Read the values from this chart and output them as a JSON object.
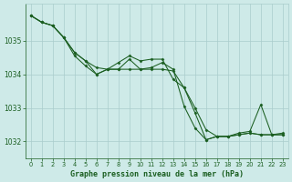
{
  "bg_color": "#ceeae8",
  "grid_color": "#aacccc",
  "line_color": "#1a5e20",
  "marker_color": "#1a5e20",
  "xlabel": "Graphe pression niveau de la mer (hPa)",
  "xlabel_color": "#1a5e20",
  "tick_color": "#1a5e20",
  "yticks": [
    1032,
    1033,
    1034,
    1035
  ],
  "xlim": [
    -0.5,
    23.5
  ],
  "ylim": [
    1031.5,
    1036.1
  ],
  "figsize": [
    3.2,
    2.0
  ],
  "dpi": 100,
  "series": [
    [
      1035.75,
      1035.55,
      1035.45,
      1035.1,
      1034.65,
      1034.4,
      1034.0,
      1034.15,
      1034.35,
      1034.55,
      1034.4,
      1034.45,
      1034.45,
      1033.85,
      1033.6,
      1033.0,
      1032.35,
      1032.15,
      1032.15,
      1032.2,
      1032.25,
      1032.2,
      1032.2,
      1032.2
    ],
    [
      1035.75,
      1035.55,
      1035.45,
      1035.1,
      1034.65,
      1034.4,
      1034.2,
      1034.15,
      1034.15,
      1034.15,
      1034.15,
      1034.15,
      1034.15,
      1034.1,
      1033.6,
      1032.85,
      1032.05,
      1032.15,
      1032.15,
      1032.2,
      1032.25,
      1032.2,
      1032.2,
      1032.2
    ],
    [
      1035.75,
      1035.55,
      1035.45,
      1035.1,
      1034.55,
      1034.25,
      1034.0,
      1034.15,
      1034.15,
      1034.45,
      1034.15,
      1034.2,
      1034.35,
      1034.15,
      1033.05,
      1032.4,
      1032.05,
      1032.15,
      1032.15,
      1032.25,
      1032.3,
      1033.1,
      1032.2,
      1032.25
    ]
  ]
}
